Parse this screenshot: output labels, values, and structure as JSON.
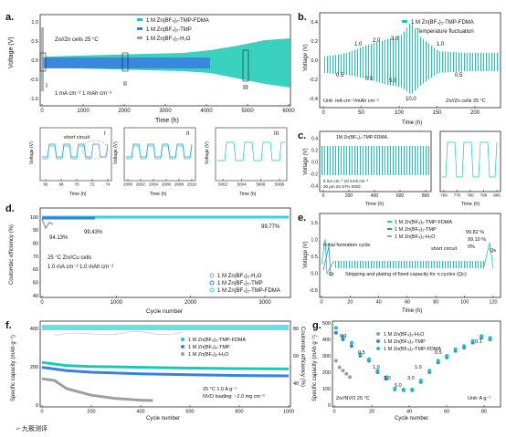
{
  "panels": {
    "a": {
      "letter": "a.",
      "ylabel": "Voltage (V)",
      "xlabel": "Time (h)",
      "xticks": [
        "0",
        "1000",
        "2000",
        "3000",
        "4000",
        "5000",
        "6000"
      ],
      "yticks": [
        "1.0",
        "0.5",
        "0.0",
        "-0.5",
        "-1.0"
      ],
      "legend": [
        "1 M Zn(BF₄)₂-TMP-FDMA",
        "1 M Zn(BF₄)₂-TMP",
        "1 M Zn(BF₄)₂-H₂O"
      ],
      "annot": [
        "Zn//Zn cells  25 °C",
        "1 mA cm⁻²  1 mAh cm⁻²"
      ],
      "roman": [
        "I",
        "II",
        "III"
      ],
      "zoom": {
        "I": {
          "xticks": [
            "66",
            "68",
            "70",
            "72",
            "74"
          ],
          "xlabel": "Time (h)",
          "ylabel": "Voltage (V)",
          "note": "short circuit",
          "tag": "I"
        },
        "II": {
          "xticks": [
            "2000",
            "2002",
            "2004",
            "2006",
            "2008",
            "2010"
          ],
          "xlabel": "Time (h)",
          "ylabel": "Voltage (V)",
          "tag": "II"
        },
        "III": {
          "xticks": [
            "5002",
            "5004",
            "5006",
            "5008"
          ],
          "xlabel": "Time (h)",
          "ylabel": "Voltage (V)",
          "tag": "III"
        }
      },
      "colors": {
        "fdma": "#19c9b4",
        "tmp": "#3b7fe0",
        "h2o": "#9aa0a6"
      }
    },
    "b": {
      "letter": "b.",
      "legend": "1 M Zn(BF₄)₂-TMP-FDMA",
      "note": "Temperature fluctuation",
      "ylabel": "Voltage (V)",
      "xlabel": "Time (h)",
      "xticks": [
        "0",
        "50",
        "100",
        "150",
        "200"
      ],
      "yticks": [
        "0.4",
        "0.2",
        "0.0",
        "-0.2",
        "-0.4"
      ],
      "rates_top": [
        "1.0",
        "2.0",
        "3.0",
        "1.0"
      ],
      "rates_mid": [
        "0.5",
        "0.5",
        "5.0",
        "0.5"
      ],
      "rate_bottom": "10.0",
      "unit": "Unit: mA cm⁻²/mAh cm⁻²",
      "cell": "Zn//Zn cells  25 °C"
    },
    "c": {
      "letter": "c.",
      "legend": "1M Zn(BF₄)₂-TMP-FDMA",
      "ylabel": "Voltage (V)",
      "xlabel": "Time (h)",
      "xticks": [
        "0",
        "200",
        "400",
        "600",
        "800"
      ],
      "yticks": [
        "0.4",
        "0.2",
        "0.0",
        "-0.2",
        "-0.4"
      ],
      "annot": [
        "5 mA cm⁻²  10 mAh cm⁻²",
        "30 μm Zn   57% DOD"
      ],
      "zoom_xticks": [
        "760",
        "770",
        "780",
        "790",
        "800"
      ],
      "zoom_xlabel": "Time (h)"
    },
    "d": {
      "letter": "d.",
      "ylabel": "Coulombic efficiency (%)",
      "xlabel": "Cycle number",
      "xticks": [
        "0",
        "1000",
        "2000",
        "3000"
      ],
      "yticks": [
        "100",
        "90",
        "80",
        "70",
        "60",
        "50",
        "40"
      ],
      "labels": [
        "94.13%",
        "99.43%",
        "99.77%"
      ],
      "annot": [
        "25 °C       Zn//Cu cells",
        "1.0 mA cm⁻² 1.0 mAh cm⁻²"
      ],
      "legend": [
        "1 M Zn(BF₄)₂-H₂O",
        "1 M Zn(BF₄)₂-TMP",
        "1 M Zn(BF₄)₂-TMP-FDMA"
      ]
    },
    "e": {
      "letter": "e.",
      "ylabel": "Voltage (V)",
      "xlabel": "Time (h)",
      "xticks": [
        "0",
        "20",
        "40",
        "60",
        "80",
        "100",
        "120"
      ],
      "yticks": [
        "1.5",
        "1.0",
        "0.5",
        "0.0",
        "-0.5"
      ],
      "legend": [
        "1 M Zn(BF₄)₂-TMP-FDMA",
        "1 M Zn(BF₄)₂-TMP",
        "1 M Zn(BF₄)₂-H₂O"
      ],
      "ce": [
        "99.82 %",
        "99.10 %",
        "0%"
      ],
      "notes": [
        "Initial formation cycle",
        "short circuit",
        "Stripping and plating of fixed capacity for n cycles (Qc)",
        "Qr",
        "Qs"
      ]
    },
    "f": {
      "letter": "f.",
      "ylabel": "Specific capacity (mAh g⁻¹)",
      "ylabel2": "Coulombic efficiency (%)",
      "xlabel": "Cycle number",
      "xticks": [
        "0",
        "200",
        "400",
        "600",
        "800",
        "1000"
      ],
      "yticks": [
        "400",
        "200",
        "0"
      ],
      "yticks2": [
        "80",
        "60",
        "40"
      ],
      "legend": [
        "1 M Zn(BF₄)₂-TMP-FDMA",
        "1 M Zn(BF₄)₂-TMP",
        "1 M Zn(BF₄)₂-H₂O"
      ],
      "annot": [
        "25 °C          1.0 A g⁻¹",
        "NVO loading: ~2.0 mg cm⁻²"
      ]
    },
    "g": {
      "letter": "g.",
      "ylabel": "Specific capacity (mAh g⁻¹)",
      "xlabel": "Cycle number",
      "xticks": [
        "0",
        "20",
        "40",
        "60",
        "80"
      ],
      "yticks": [
        "500",
        "400",
        "300",
        "200",
        "100",
        "0"
      ],
      "legend": [
        "1 M Zn(BF₄)₂-H₂O",
        "1 M Zn(BF₄)₂-TMP",
        "1 M Zn(BF₄)₂-TMP-FDMA"
      ],
      "rates": [
        "0.1",
        "0.5",
        "1.0",
        "3.0",
        "5.0",
        "3.0",
        "1.0",
        "0.5",
        "0.1"
      ],
      "annot": [
        "Zn//NVO   25 °C",
        "Unit: A g⁻¹"
      ]
    }
  },
  "watermark": "⌐ 九筱测评",
  "chart_data": [
    {
      "panel": "g",
      "type": "scatter",
      "title": "",
      "xlabel": "Cycle number",
      "ylabel": "Specific capacity (mAh g⁻¹)",
      "xlim": [
        0,
        95
      ],
      "ylim": [
        0,
        500
      ],
      "series": [
        {
          "name": "1 M Zn(BF₄)₂-H₂O",
          "x": [
            1,
            3,
            5,
            7,
            9
          ],
          "y": [
            270,
            230,
            210,
            190,
            170
          ]
        },
        {
          "name": "1 M Zn(BF₄)₂-TMP",
          "x": [
            1,
            5,
            10,
            15,
            20,
            25,
            30,
            35,
            40,
            45,
            50,
            55,
            60,
            65,
            70,
            75,
            80,
            85,
            90
          ],
          "y": [
            440,
            400,
            360,
            300,
            270,
            200,
            160,
            95,
            90,
            90,
            140,
            200,
            260,
            290,
            330,
            350,
            380,
            410,
            400
          ]
        },
        {
          "name": "1 M Zn(BF₄)₂-TMP-FDMA",
          "x": [
            1,
            5,
            10,
            15,
            20,
            25,
            30,
            35,
            40,
            45,
            50,
            55,
            60,
            65,
            70,
            75,
            80,
            85,
            90
          ],
          "y": [
            470,
            420,
            380,
            310,
            280,
            210,
            170,
            100,
            95,
            95,
            150,
            210,
            270,
            300,
            340,
            360,
            390,
            420,
            410
          ]
        }
      ]
    },
    {
      "panel": "f",
      "type": "scatter",
      "xlabel": "Cycle number",
      "ylabel": "Specific capacity (mAh g⁻¹)",
      "xlim": [
        0,
        1000
      ],
      "ylim": [
        0,
        500
      ],
      "series": [
        {
          "name": "1 M Zn(BF₄)₂-TMP-FDMA",
          "x": [
            0,
            100,
            200,
            400,
            600,
            800,
            1000
          ],
          "y": [
            260,
            240,
            235,
            230,
            225,
            222,
            220
          ]
        },
        {
          "name": "1 M Zn(BF₄)₂-TMP",
          "x": [
            0,
            100,
            200,
            400,
            600,
            800,
            1000
          ],
          "y": [
            230,
            210,
            200,
            190,
            185,
            180,
            178
          ]
        },
        {
          "name": "1 M Zn(BF₄)₂-H₂O",
          "x": [
            0,
            50,
            100,
            200,
            300,
            400,
            450
          ],
          "y": [
            160,
            150,
            100,
            60,
            40,
            30,
            28
          ]
        }
      ]
    },
    {
      "panel": "d",
      "type": "scatter",
      "xlabel": "Cycle number",
      "ylabel": "Coulombic efficiency (%)",
      "xlim": [
        0,
        3000
      ],
      "ylim": [
        40,
        100
      ],
      "series": [
        {
          "name": "1 M Zn(BF₄)₂-H₂O",
          "x": [
            0,
            50,
            100
          ],
          "y": [
            90,
            94.13,
            92
          ]
        },
        {
          "name": "1 M Zn(BF₄)₂-TMP",
          "x": [
            0,
            500,
            1000
          ],
          "y": [
            99,
            99.43,
            99.4
          ]
        },
        {
          "name": "1 M Zn(BF₄)₂-TMP-FDMA",
          "x": [
            0,
            1500,
            3000
          ],
          "y": [
            99.7,
            99.77,
            99.77
          ]
        }
      ]
    }
  ]
}
